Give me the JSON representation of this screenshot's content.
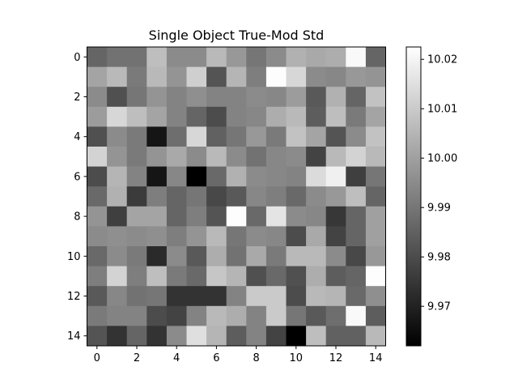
{
  "chart_data": {
    "type": "heatmap",
    "title": "Single Object True-Mod Std",
    "colormap": "gray",
    "vmin": 9.962,
    "vmax": 10.0225,
    "x_ticks": [
      0,
      2,
      4,
      6,
      8,
      10,
      12,
      14
    ],
    "y_ticks": [
      0,
      2,
      4,
      6,
      8,
      10,
      12,
      14
    ],
    "colorbar_ticks": [
      9.97,
      9.98,
      9.99,
      10.0,
      10.01,
      10.02
    ],
    "colorbar_tick_labels": [
      "9.97",
      "9.98",
      "9.99",
      "10.00",
      "10.01",
      "10.02"
    ],
    "grid": false,
    "values": [
      [
        9.986,
        9.989,
        9.989,
        10.007,
        9.995,
        9.995,
        10.006,
        9.998,
        9.99,
        9.995,
        10.004,
        10.002,
        10.003,
        10.021,
        9.986
      ],
      [
        10.001,
        10.006,
        9.991,
        10.006,
        9.997,
        10.011,
        9.982,
        10.005,
        9.992,
        10.022,
        10.013,
        9.995,
        9.994,
        9.998,
        9.997
      ],
      [
        9.995,
        9.981,
        9.99,
        9.997,
        9.993,
        9.996,
        9.993,
        9.993,
        9.995,
        9.994,
        9.999,
        9.983,
        10.004,
        9.986,
        10.008
      ],
      [
        9.999,
        10.013,
        10.007,
        10.001,
        9.993,
        9.986,
        9.98,
        9.993,
        9.994,
        10.003,
        10.006,
        9.984,
        10.007,
        9.991,
        10.001
      ],
      [
        9.981,
        9.995,
        9.991,
        9.967,
        9.988,
        10.013,
        9.985,
        9.99,
        9.998,
        9.991,
        10.008,
        10.001,
        9.982,
        9.995,
        10.008
      ],
      [
        10.012,
        9.997,
        9.991,
        9.997,
        10.002,
        9.995,
        10.006,
        9.995,
        9.989,
        9.994,
        9.995,
        9.978,
        10.006,
        10.012,
        10.006
      ],
      [
        9.98,
        10.005,
        9.993,
        9.967,
        9.994,
        9.962,
        9.987,
        10.004,
        9.995,
        9.994,
        9.993,
        10.014,
        10.019,
        9.977,
        9.99
      ],
      [
        9.987,
        10.004,
        9.976,
        9.992,
        9.986,
        9.99,
        9.979,
        9.983,
        9.994,
        9.992,
        9.987,
        9.995,
        9.998,
        10.007,
        9.986
      ],
      [
        9.997,
        9.977,
        10.001,
        10.001,
        9.986,
        9.992,
        9.982,
        10.022,
        9.987,
        10.016,
        9.995,
        9.994,
        9.975,
        9.986,
        10.0
      ],
      [
        9.995,
        9.996,
        9.995,
        9.996,
        9.992,
        9.997,
        10.006,
        9.99,
        9.995,
        9.994,
        9.98,
        10.002,
        9.978,
        9.986,
        10.0
      ],
      [
        9.987,
        9.995,
        9.991,
        9.972,
        9.995,
        9.983,
        10.003,
        9.989,
        10.002,
        9.991,
        10.006,
        10.006,
        9.995,
        9.979,
        9.998
      ],
      [
        9.992,
        10.012,
        9.992,
        10.007,
        9.991,
        9.987,
        10.009,
        10.005,
        9.981,
        9.987,
        9.981,
        10.003,
        9.984,
        9.986,
        10.022
      ],
      [
        9.983,
        9.994,
        9.989,
        9.99,
        9.974,
        9.974,
        9.974,
        9.993,
        10.01,
        10.01,
        9.98,
        10.006,
        10.005,
        9.987,
        9.996
      ],
      [
        9.991,
        9.993,
        9.993,
        9.98,
        9.978,
        9.993,
        10.006,
        10.003,
        9.993,
        10.01,
        9.99,
        9.983,
        9.988,
        10.021,
        9.984
      ],
      [
        9.982,
        9.974,
        9.986,
        9.974,
        9.995,
        10.015,
        10.005,
        9.984,
        9.993,
        9.978,
        9.962,
        10.007,
        9.985,
        9.985,
        10.006
      ]
    ]
  }
}
